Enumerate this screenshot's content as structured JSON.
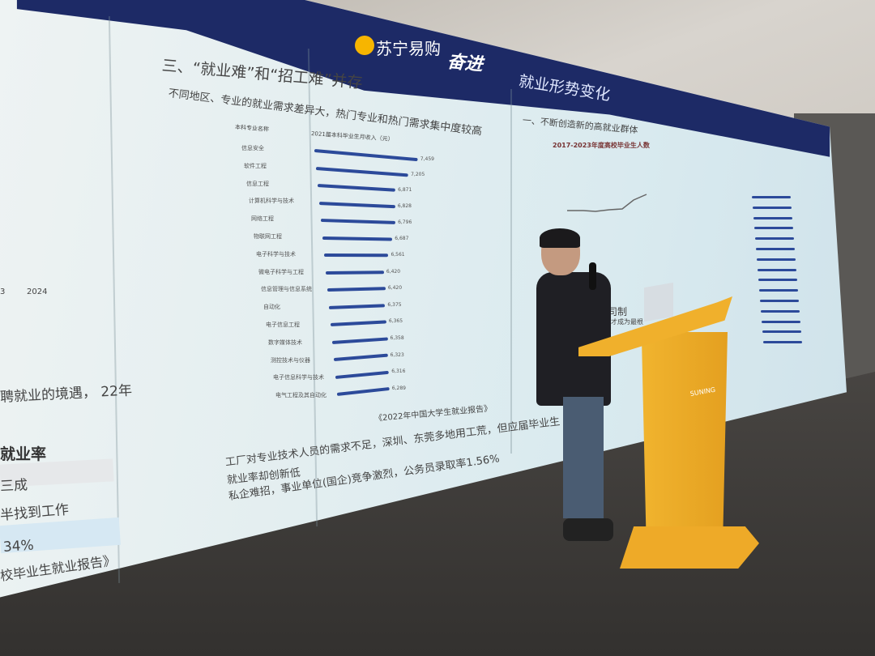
{
  "scene": {
    "description_type": "presentation-photo"
  },
  "banner": {
    "brand": "苏宁易购",
    "slogan": "奋进",
    "section_title": "就业形势变化",
    "accent": "#1d2a66",
    "brand_color": "#f7b500"
  },
  "slide": {
    "title": "三、“就业难”和“招工难”并存",
    "bullet1": "不同地区、专业的就业需求差异大，热门专业和热门需求集中度较高",
    "col_header_major": "本科专业名称",
    "col_header_salary": "2021届本科毕业生月收入（元）",
    "source": "《2022年中国大学生就业报告》",
    "bullet2": "工厂对专业技术人员的需求不足，深圳、东莞多地用工荒，但应届毕业生",
    "bullet2_cont": "就业率却创新低",
    "bullet3": "私企难招，事业单位(国企)竞争激烈，公务员录取率1.56%",
    "bar_color": "#2c4a9a",
    "bars": [
      {
        "label": "信息安全",
        "value": "7,459"
      },
      {
        "label": "软件工程",
        "value": "7,205"
      },
      {
        "label": "信息工程",
        "value": "6,871"
      },
      {
        "label": "计算机科学与技术",
        "value": "6,828"
      },
      {
        "label": "网络工程",
        "value": "6,796"
      },
      {
        "label": "物联网工程",
        "value": "6,687"
      },
      {
        "label": "电子科学与技术",
        "value": "6,561"
      },
      {
        "label": "微电子科学与工程",
        "value": "6,420"
      },
      {
        "label": "信息管理与信息系统",
        "value": "6,420"
      },
      {
        "label": "自动化",
        "value": "6,375"
      },
      {
        "label": "电子信息工程",
        "value": "6,365"
      },
      {
        "label": "数字媒体技术",
        "value": "6,358"
      },
      {
        "label": "测控技术与仪器",
        "value": "6,323"
      },
      {
        "label": "电子信息科学与技术",
        "value": "6,316"
      },
      {
        "label": "电气工程及其自动化",
        "value": "6,289"
      }
    ]
  },
  "left_slide": {
    "axis_year_a": "3",
    "axis_year_b": "2024",
    "text1": "聘就业的境遇， 22年",
    "heading": "就业率",
    "row1": "三成",
    "row2": "半找到工作",
    "row3": "34%",
    "source": "校毕业生就业报告》"
  },
  "right_slide": {
    "title": "一、不断创造新的高就业群体",
    "chart_title": "2017-2023年度高校毕业生人数",
    "partial_text1": "招司制",
    "partial_text2": "及人才成为最根"
  },
  "podium": {
    "label": "SUNING"
  }
}
